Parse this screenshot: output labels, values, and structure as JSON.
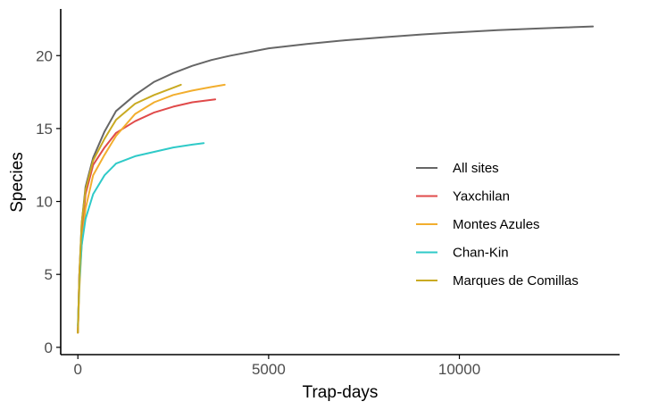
{
  "chart_data": {
    "type": "line",
    "title": "",
    "xlabel": "Trap-days",
    "ylabel": "Species",
    "xlim": [
      -450,
      14200
    ],
    "ylim": [
      -0.5,
      23.2
    ],
    "x_ticks": [
      0,
      5000,
      10000
    ],
    "y_ticks": [
      0,
      5,
      10,
      15,
      20
    ],
    "grid": false,
    "legend_position": "right",
    "series": [
      {
        "name": "All sites",
        "color": "#666666",
        "points": [
          [
            0,
            1
          ],
          [
            40,
            5
          ],
          [
            100,
            8.5
          ],
          [
            200,
            11
          ],
          [
            400,
            13
          ],
          [
            700,
            14.8
          ],
          [
            1000,
            16.2
          ],
          [
            1500,
            17.3
          ],
          [
            2000,
            18.2
          ],
          [
            2500,
            18.8
          ],
          [
            3000,
            19.3
          ],
          [
            3500,
            19.7
          ],
          [
            4000,
            20.0
          ],
          [
            5000,
            20.5
          ],
          [
            6000,
            20.8
          ],
          [
            7000,
            21.05
          ],
          [
            8000,
            21.25
          ],
          [
            9000,
            21.45
          ],
          [
            10000,
            21.6
          ],
          [
            11000,
            21.75
          ],
          [
            12000,
            21.85
          ],
          [
            13000,
            21.95
          ],
          [
            13500,
            22.0
          ]
        ]
      },
      {
        "name": "Yaxchilan",
        "color": "#e04a4a",
        "points": [
          [
            0,
            1
          ],
          [
            40,
            5
          ],
          [
            100,
            7.8
          ],
          [
            200,
            10.5
          ],
          [
            400,
            12.5
          ],
          [
            700,
            13.7
          ],
          [
            1000,
            14.7
          ],
          [
            1500,
            15.5
          ],
          [
            2000,
            16.1
          ],
          [
            2500,
            16.5
          ],
          [
            3000,
            16.8
          ],
          [
            3600,
            17.0
          ]
        ]
      },
      {
        "name": "Montes Azules",
        "color": "#f2ae2e",
        "points": [
          [
            0,
            1
          ],
          [
            40,
            4
          ],
          [
            100,
            7
          ],
          [
            200,
            9.5
          ],
          [
            400,
            11.8
          ],
          [
            700,
            13.2
          ],
          [
            1000,
            14.5
          ],
          [
            1500,
            16.0
          ],
          [
            2000,
            16.8
          ],
          [
            2500,
            17.3
          ],
          [
            3000,
            17.6
          ],
          [
            3500,
            17.85
          ],
          [
            3850,
            18.0
          ]
        ]
      },
      {
        "name": "Chan-Kin",
        "color": "#2fcac8",
        "points": [
          [
            0,
            1.5
          ],
          [
            40,
            4.5
          ],
          [
            100,
            7
          ],
          [
            200,
            8.8
          ],
          [
            400,
            10.5
          ],
          [
            700,
            11.8
          ],
          [
            1000,
            12.6
          ],
          [
            1500,
            13.1
          ],
          [
            2000,
            13.4
          ],
          [
            2500,
            13.7
          ],
          [
            3000,
            13.9
          ],
          [
            3300,
            14.0
          ]
        ]
      },
      {
        "name": "Marques de Comillas",
        "color": "#c9aa22",
        "points": [
          [
            0,
            1
          ],
          [
            40,
            5
          ],
          [
            100,
            8.5
          ],
          [
            200,
            10.8
          ],
          [
            400,
            12.8
          ],
          [
            700,
            14.3
          ],
          [
            1000,
            15.6
          ],
          [
            1500,
            16.7
          ],
          [
            2000,
            17.3
          ],
          [
            2500,
            17.8
          ],
          [
            2700,
            18.0
          ]
        ]
      }
    ]
  }
}
